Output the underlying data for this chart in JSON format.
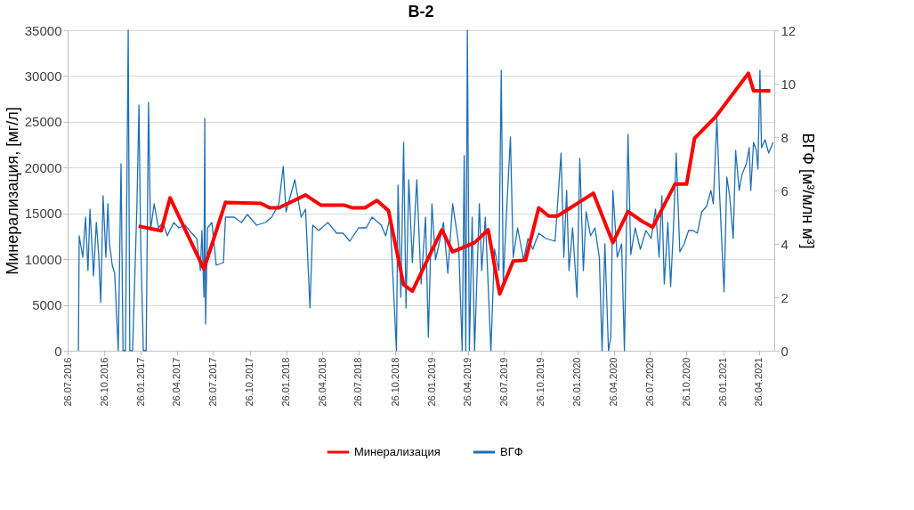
{
  "chart_data": {
    "type": "line",
    "title": "В-2",
    "ylabel": "Минерализация, [мг/л]",
    "y2label": "ВГФ [м³/млн м³]",
    "xlim": [
      "2016-07-26",
      "2021-06-03"
    ],
    "xticks": [
      {
        "value": "2016-07-26",
        "label": "26.07.2016"
      },
      {
        "value": "2016-10-26",
        "label": "26.10.2016"
      },
      {
        "value": "2017-01-26",
        "label": "26.01.2017"
      },
      {
        "value": "2017-04-26",
        "label": "26.04.2017"
      },
      {
        "value": "2017-07-26",
        "label": "26.07.2017"
      },
      {
        "value": "2017-10-26",
        "label": "26.10.2017"
      },
      {
        "value": "2018-01-26",
        "label": "26.01.2018"
      },
      {
        "value": "2018-04-26",
        "label": "26.04.2018"
      },
      {
        "value": "2018-07-26",
        "label": "26.07.2018"
      },
      {
        "value": "2018-10-26",
        "label": "26.10.2018"
      },
      {
        "value": "2019-01-26",
        "label": "26.01.2019"
      },
      {
        "value": "2019-04-26",
        "label": "26.04.2019"
      },
      {
        "value": "2019-07-26",
        "label": "26.07.2019"
      },
      {
        "value": "2019-10-26",
        "label": "26.10.2019"
      },
      {
        "value": "2020-01-26",
        "label": "26.01.2020"
      },
      {
        "value": "2020-04-26",
        "label": "26.04.2020"
      },
      {
        "value": "2020-07-26",
        "label": "26.07.2020"
      },
      {
        "value": "2020-10-26",
        "label": "26.10.2020"
      },
      {
        "value": "2021-01-26",
        "label": "26.01.2021"
      },
      {
        "value": "2021-04-26",
        "label": "26.04.2021"
      }
    ],
    "ylim": [
      0,
      35000
    ],
    "yticks": [
      0,
      5000,
      10000,
      15000,
      20000,
      25000,
      30000,
      35000
    ],
    "y2lim": [
      0,
      12
    ],
    "y2ticks": [
      0,
      2,
      4,
      6,
      8,
      10,
      12
    ],
    "grid": "y",
    "legend": "bottom",
    "marker": "none",
    "line_style": "solid",
    "series": [
      {
        "name": "Минерализация",
        "color": "#ff0000",
        "axis": "y",
        "x": [
          "2017-01-20",
          "2017-03-18",
          "2017-04-09",
          "2017-07-03",
          "2017-08-26",
          "2017-11-23",
          "2017-12-15",
          "2018-01-07",
          "2018-03-15",
          "2018-04-22",
          "2018-06-19",
          "2018-07-11",
          "2018-08-11",
          "2018-09-10",
          "2018-10-09",
          "2018-11-16",
          "2018-12-08",
          "2019-02-20",
          "2019-03-19",
          "2019-05-13",
          "2019-06-16",
          "2019-07-15",
          "2019-08-18",
          "2019-09-18",
          "2019-10-21",
          "2019-11-15",
          "2019-12-07",
          "2020-03-06",
          "2020-04-24",
          "2020-06-01",
          "2020-07-04",
          "2020-08-02",
          "2020-09-27",
          "2020-10-26",
          "2020-11-15",
          "2021-01-06",
          "2021-03-30",
          "2021-04-12",
          "2021-05-24"
        ],
        "values": [
          13600,
          13100,
          16700,
          8900,
          16200,
          16100,
          15600,
          15600,
          17000,
          15900,
          15900,
          15600,
          15600,
          16400,
          15300,
          7200,
          6500,
          13200,
          10800,
          11800,
          13200,
          6200,
          9800,
          9900,
          15600,
          14700,
          14700,
          17200,
          11800,
          15200,
          14200,
          13500,
          18200,
          18200,
          23200,
          25500,
          30300,
          28400,
          28400
        ]
      },
      {
        "name": "ВГФ",
        "color": "#1f6fb4",
        "axis": "y2",
        "x": [
          "2016-08-22",
          "2016-08-24",
          "2016-09-02",
          "2016-09-09",
          "2016-09-15",
          "2016-09-20",
          "2016-09-29",
          "2016-10-06",
          "2016-10-12",
          "2016-10-17",
          "2016-10-23",
          "2016-10-30",
          "2016-11-04",
          "2016-11-08",
          "2016-11-15",
          "2016-11-21",
          "2016-11-30",
          "2016-12-07",
          "2016-12-12",
          "2016-12-18",
          "2016-12-25",
          "2016-12-29",
          "2017-01-05",
          "2017-01-16",
          "2017-01-21",
          "2017-01-25",
          "2017-02-01",
          "2017-02-08",
          "2017-02-14",
          "2017-02-19",
          "2017-02-28",
          "2017-03-11",
          "2017-03-22",
          "2017-04-02",
          "2017-04-18",
          "2017-05-01",
          "2017-05-17",
          "2017-06-02",
          "2017-06-15",
          "2017-06-24",
          "2017-06-28",
          "2017-07-03",
          "2017-07-05",
          "2017-07-07",
          "2017-07-12",
          "2017-07-23",
          "2017-08-03",
          "2017-08-21",
          "2017-08-26",
          "2017-09-17",
          "2017-10-05",
          "2017-10-20",
          "2017-11-12",
          "2017-12-04",
          "2017-12-20",
          "2018-01-07",
          "2018-01-18",
          "2018-01-25",
          "2018-02-05",
          "2018-02-16",
          "2018-03-04",
          "2018-03-15",
          "2018-03-26",
          "2018-04-02",
          "2018-04-17",
          "2018-05-10",
          "2018-06-01",
          "2018-06-17",
          "2018-07-04",
          "2018-07-26",
          "2018-08-14",
          "2018-08-29",
          "2018-09-21",
          "2018-10-02",
          "2018-10-13",
          "2018-10-29",
          "2018-11-02",
          "2018-11-09",
          "2018-11-16",
          "2018-11-22",
          "2018-11-29",
          "2018-12-08",
          "2018-12-19",
          "2018-12-30",
          "2019-01-10",
          "2019-01-17",
          "2019-01-26",
          "2019-02-04",
          "2019-02-13",
          "2019-02-24",
          "2019-03-07",
          "2019-03-19",
          "2019-04-03",
          "2019-04-12",
          "2019-04-17",
          "2019-04-21",
          "2019-04-25",
          "2019-04-30",
          "2019-05-07",
          "2019-05-13",
          "2019-05-25",
          "2019-05-31",
          "2019-06-09",
          "2019-06-23",
          "2019-07-02",
          "2019-07-13",
          "2019-07-19",
          "2019-07-24",
          "2019-07-31",
          "2019-08-11",
          "2019-08-18",
          "2019-08-29",
          "2019-09-13",
          "2019-09-24",
          "2019-10-06",
          "2019-10-21",
          "2019-11-08",
          "2019-12-01",
          "2019-12-16",
          "2019-12-23",
          "2019-12-30",
          "2020-01-05",
          "2020-01-14",
          "2020-01-25",
          "2020-02-01",
          "2020-02-10",
          "2020-02-17",
          "2020-02-28",
          "2020-03-10",
          "2020-03-21",
          "2020-03-28",
          "2020-04-04",
          "2020-04-13",
          "2020-04-19",
          "2020-04-24",
          "2020-05-05",
          "2020-05-16",
          "2020-05-23",
          "2020-06-01",
          "2020-06-08",
          "2020-06-19",
          "2020-07-02",
          "2020-07-16",
          "2020-07-29",
          "2020-08-09",
          "2020-08-18",
          "2020-08-25",
          "2020-08-31",
          "2020-09-09",
          "2020-09-16",
          "2020-09-23",
          "2020-09-30",
          "2020-10-09",
          "2020-10-20",
          "2020-10-31",
          "2020-11-11",
          "2020-11-22",
          "2020-12-03",
          "2020-12-15",
          "2020-12-26",
          "2021-01-01",
          "2021-01-10",
          "2021-01-17",
          "2021-01-28",
          "2021-02-04",
          "2021-02-11",
          "2021-02-20",
          "2021-02-26",
          "2021-03-07",
          "2021-03-14",
          "2021-03-25",
          "2021-04-01",
          "2021-04-05",
          "2021-04-12",
          "2021-04-19",
          "2021-04-23",
          "2021-04-28",
          "2021-05-02",
          "2021-05-11",
          "2021-05-20",
          "2021-05-31"
        ],
        "values": [
          0,
          4.3,
          3.5,
          5.0,
          3.0,
          5.3,
          2.8,
          4.8,
          3.6,
          1.8,
          5.8,
          3.5,
          5.5,
          4.0,
          3.2,
          2.9,
          0,
          7.0,
          0,
          0,
          12,
          0,
          0,
          5.5,
          9.2,
          4.3,
          0,
          0,
          9.3,
          4.5,
          5.5,
          4.6,
          4.8,
          4.3,
          4.8,
          4.6,
          4.7,
          4.4,
          4.2,
          3.0,
          4.5,
          2.0,
          8.7,
          1.0,
          4.6,
          4.8,
          3.2,
          3.3,
          5.0,
          5.0,
          4.8,
          5.1,
          4.7,
          4.8,
          5.0,
          5.5,
          6.9,
          5.2,
          5.8,
          6.4,
          5.0,
          5.3,
          1.6,
          4.7,
          4.5,
          4.8,
          4.4,
          4.4,
          4.1,
          4.6,
          4.6,
          5.0,
          4.7,
          4.3,
          5.0,
          0,
          6.2,
          2.0,
          7.8,
          1.6,
          6.4,
          3.3,
          6.4,
          2.5,
          5.0,
          0.5,
          5.5,
          3.4,
          4.0,
          4.8,
          2.9,
          5.5,
          4.0,
          0,
          7.3,
          0,
          12,
          0,
          5.0,
          0,
          5.5,
          3.0,
          5.0,
          0,
          3.8,
          3.0,
          10.5,
          2.5,
          4.8,
          8.0,
          3.5,
          4.6,
          3.4,
          4.2,
          3.8,
          4.4,
          4.2,
          4.1,
          7.4,
          3.5,
          6.0,
          3.0,
          4.6,
          2.0,
          7.2,
          3.0,
          5.2,
          4.3,
          4.6,
          3.5,
          0,
          4.0,
          0,
          0.5,
          6.0,
          3.5,
          4.0,
          0,
          8.1,
          3.6,
          4.6,
          3.8,
          4.5,
          4.2,
          5.3,
          3.5,
          5.8,
          2.5,
          4.8,
          2.4,
          4.6,
          7.4,
          3.7,
          4.0,
          4.5,
          4.5,
          4.4,
          5.2,
          5.4,
          6.0,
          5.5,
          8.7,
          5.8,
          2.2,
          6.5,
          5.8,
          4.2,
          7.5,
          6.0,
          6.6,
          7.0,
          7.6,
          6.0,
          7.8,
          7.5,
          6.8,
          10.5,
          7.6,
          7.9,
          7.4,
          7.8
        ]
      }
    ]
  }
}
